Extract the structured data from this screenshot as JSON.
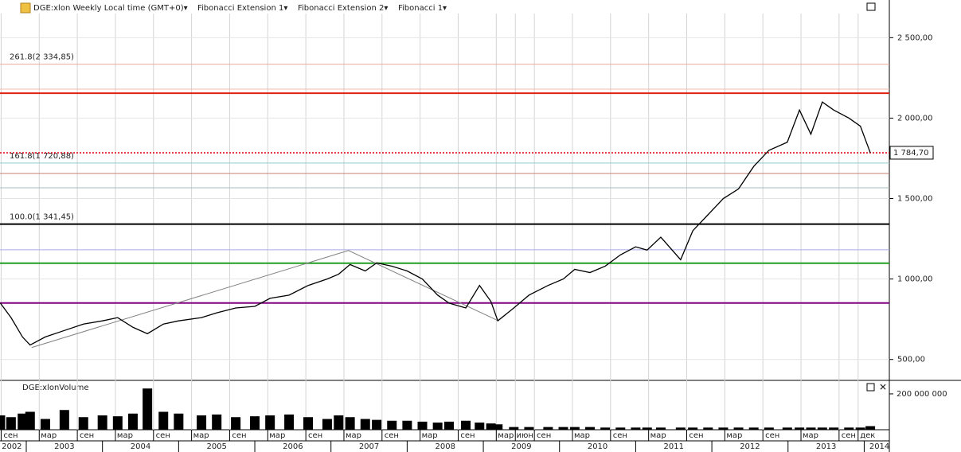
{
  "toolbar": [
    "DGE:xlon Weekly Local time (GMT+0)",
    "Fibonacci Extension 1",
    "Fibonacci Extension 2",
    "Fibonacci 1"
  ],
  "chart_data": {
    "type": "line",
    "color": "#000000",
    "x": [
      2002.66,
      2002.8,
      2002.95,
      2003.05,
      2003.25,
      2003.5,
      2003.75,
      2004.0,
      2004.2,
      2004.4,
      2004.59,
      2004.8,
      2005.0,
      2005.3,
      2005.5,
      2005.75,
      2006.0,
      2006.2,
      2006.45,
      2006.7,
      2006.95,
      2007.1,
      2007.25,
      2007.45,
      2007.6,
      2007.8,
      2008.0,
      2008.2,
      2008.4,
      2008.55,
      2008.77,
      2008.95,
      2009.1,
      2009.19,
      2009.4,
      2009.6,
      2009.85,
      2010.05,
      2010.2,
      2010.4,
      2010.6,
      2010.8,
      2011.0,
      2011.15,
      2011.33,
      2011.59,
      2011.75,
      2011.95,
      2012.15,
      2012.35,
      2012.55,
      2012.75,
      2012.99,
      2013.15,
      2013.3,
      2013.45,
      2013.6,
      2013.8,
      2013.95,
      2014.08
    ],
    "values": [
      850,
      760,
      640,
      590,
      640,
      680,
      720,
      740,
      760,
      700,
      660,
      720,
      740,
      760,
      790,
      820,
      830,
      880,
      900,
      960,
      1000,
      1030,
      1090,
      1050,
      1100,
      1080,
      1050,
      1000,
      900,
      850,
      820,
      960,
      860,
      740,
      820,
      900,
      960,
      1000,
      1060,
      1040,
      1080,
      1150,
      1200,
      1180,
      1260,
      1120,
      1300,
      1400,
      1500,
      1560,
      1700,
      1800,
      1850,
      2050,
      1900,
      2100,
      2050,
      2000,
      1950,
      1784.7
    ],
    "xlim": [
      2002.655,
      2014.33
    ],
    "ylim": [
      370,
      2650
    ],
    "yticks": [
      {
        "value": 500,
        "label": "500,00"
      },
      {
        "value": 1000,
        "label": "1 000,00"
      },
      {
        "value": 1500,
        "label": "1 500,00"
      },
      {
        "value": 2000,
        "label": "2 000,00"
      },
      {
        "value": 2500,
        "label": "2 500,00"
      }
    ],
    "xticks": [
      {
        "value": 2002.67,
        "label": "сен"
      },
      {
        "value": 2003.17,
        "label": "мар"
      },
      {
        "value": 2003.67,
        "label": "сен"
      },
      {
        "value": 2004.17,
        "label": "мар"
      },
      {
        "value": 2004.67,
        "label": "сен"
      },
      {
        "value": 2005.17,
        "label": "мар"
      },
      {
        "value": 2005.67,
        "label": "сен"
      },
      {
        "value": 2006.17,
        "label": "мар"
      },
      {
        "value": 2006.67,
        "label": "сен"
      },
      {
        "value": 2007.17,
        "label": "мар"
      },
      {
        "value": 2007.67,
        "label": "сен"
      },
      {
        "value": 2008.17,
        "label": "мар"
      },
      {
        "value": 2008.67,
        "label": "сен"
      },
      {
        "value": 2009.17,
        "label": "мар"
      },
      {
        "value": 2009.42,
        "label": "июн"
      },
      {
        "value": 2009.67,
        "label": "сен"
      },
      {
        "value": 2010.17,
        "label": "мар"
      },
      {
        "value": 2010.67,
        "label": "сен"
      },
      {
        "value": 2011.17,
        "label": "мар"
      },
      {
        "value": 2011.67,
        "label": "сен"
      },
      {
        "value": 2012.17,
        "label": "мар"
      },
      {
        "value": 2012.67,
        "label": "сен"
      },
      {
        "value": 2013.17,
        "label": "мар"
      },
      {
        "value": 2013.67,
        "label": "сен"
      },
      {
        "value": 2013.92,
        "label": "дек"
      }
    ],
    "year_ticks": [
      {
        "value": 2002.81,
        "label": "2002"
      },
      {
        "value": 2003.5,
        "label": "2003"
      },
      {
        "value": 2004.5,
        "label": "2004"
      },
      {
        "value": 2005.5,
        "label": "2005"
      },
      {
        "value": 2006.5,
        "label": "2006"
      },
      {
        "value": 2007.5,
        "label": "2007"
      },
      {
        "value": 2008.5,
        "label": "2008"
      },
      {
        "value": 2009.5,
        "label": "2009"
      },
      {
        "value": 2010.5,
        "label": "2010"
      },
      {
        "value": 2011.5,
        "label": "2011"
      },
      {
        "value": 2012.5,
        "label": "2012"
      },
      {
        "value": 2013.5,
        "label": "2013"
      },
      {
        "value": 2014.2,
        "label": "2014"
      }
    ],
    "levels": [
      {
        "value": 2334.85,
        "color": "#e8a898",
        "label": "261.8(2 334,85)",
        "label_color": "#d07848",
        "width": 1
      },
      {
        "value": 2180,
        "color": "#f0b8b0",
        "width": 1
      },
      {
        "value": 2155,
        "color": "#e02010",
        "width": 2
      },
      {
        "value": 1720.88,
        "color": "#90cccc",
        "label": "161.8(1 720,88)",
        "label_color": "#5a9ea8",
        "width": 1
      },
      {
        "value": 1656,
        "color": "#c08070",
        "width": 1
      },
      {
        "value": 1567,
        "color": "#a8bcbc",
        "width": 1
      },
      {
        "value": 1341.45,
        "color": "#000000",
        "label": "100.0(1 341,45)",
        "label_color": "#202090",
        "width": 2
      },
      {
        "value": 1182,
        "color": "#a8a8e8",
        "width": 1
      },
      {
        "value": 1098,
        "color": "#20a020",
        "width": 2
      },
      {
        "value": 851,
        "color": "#800080",
        "width": 2
      }
    ],
    "trendline": {
      "x": [
        2003.07,
        2007.23,
        2009.19
      ],
      "values": [
        574,
        1177,
        742
      ],
      "color": "#808080"
    },
    "last_price": {
      "value": 1784.7,
      "label": "1 784,70",
      "color": "#e00000"
    },
    "volume": {
      "title": "DGE:xlonVolume",
      "color": "#000000",
      "ylim": [
        0,
        262000000
      ],
      "yticks": [
        {
          "value": 200000000,
          "label": "200 000 000"
        }
      ],
      "values": [
        80000000,
        70000000,
        90000000,
        100000000,
        60000000,
        110000000,
        70000000,
        80000000,
        75000000,
        90000000,
        230000000,
        100000000,
        90000000,
        80000000,
        85000000,
        70000000,
        75000000,
        80000000,
        85000000,
        70000000,
        60000000,
        80000000,
        70000000,
        60000000,
        55000000,
        50000000,
        50000000,
        45000000,
        40000000,
        45000000,
        50000000,
        40000000,
        35000000,
        30000000,
        15000000,
        15000000,
        15000000,
        15000000,
        15000000,
        15000000,
        12000000,
        12000000,
        12000000,
        12000000,
        12000000,
        12000000,
        12000000,
        12000000,
        12000000,
        12000000,
        12000000,
        12000000,
        12000000,
        12000000,
        12000000,
        12000000,
        12000000,
        12000000,
        12000000,
        20000000
      ]
    }
  }
}
